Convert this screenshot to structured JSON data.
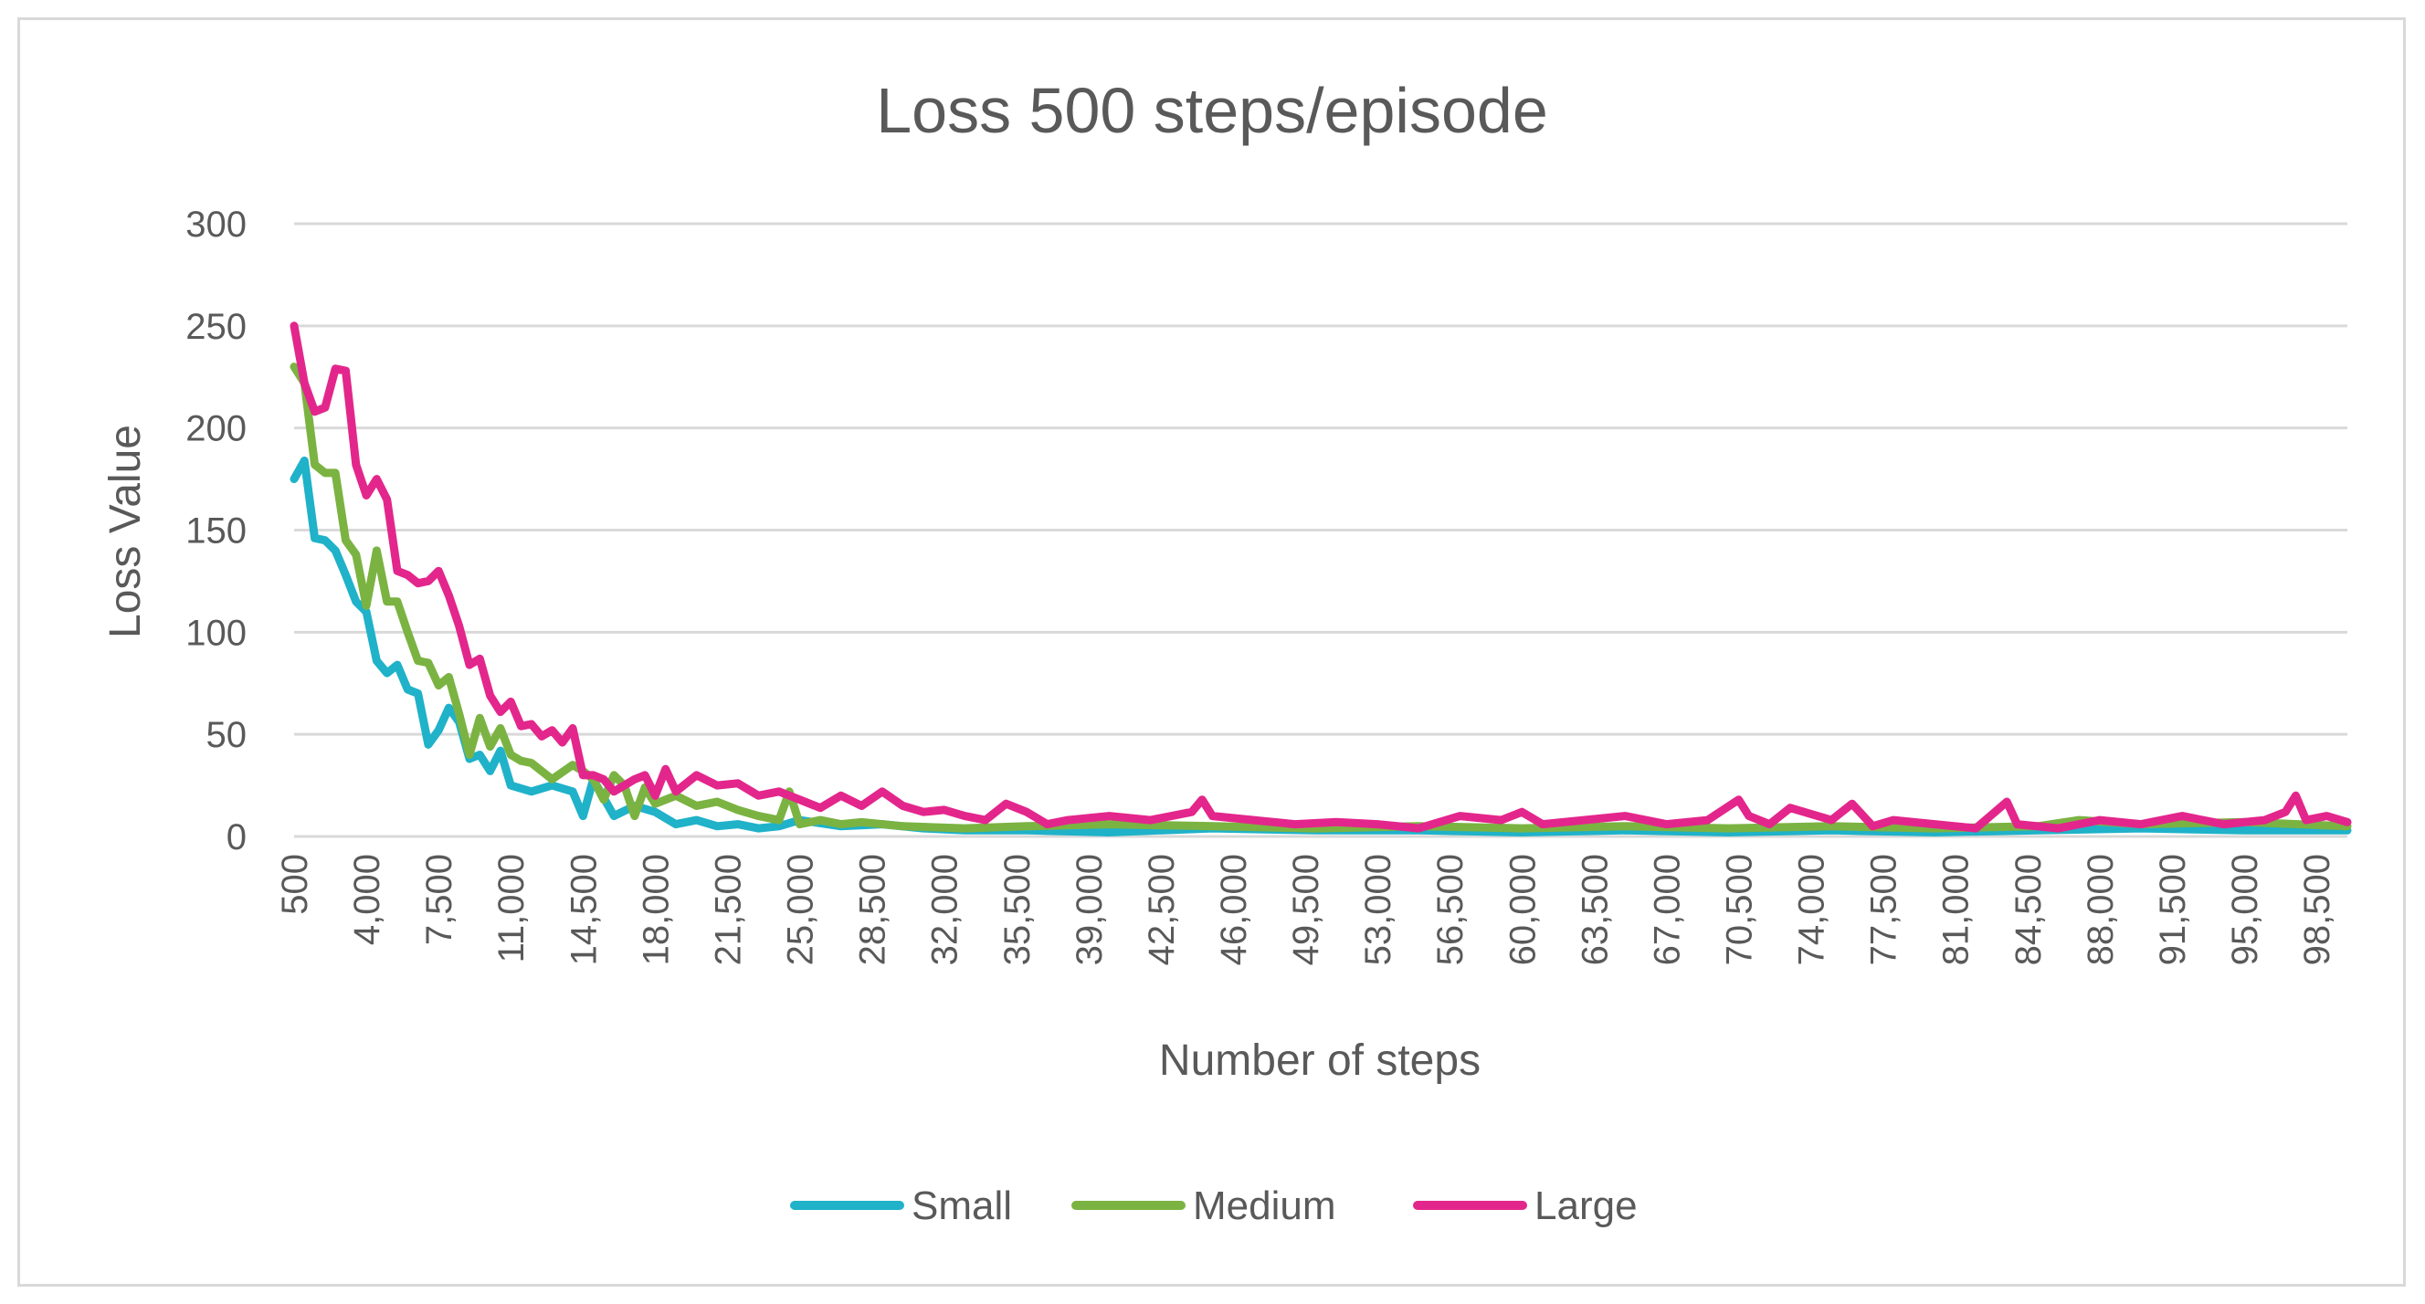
{
  "chart_data": {
    "type": "line",
    "title": "Loss 500 steps/episode",
    "xlabel": "Number of steps",
    "ylabel": "Loss Value",
    "ylim": [
      0,
      300
    ],
    "yticks": [
      0,
      50,
      100,
      150,
      200,
      250,
      300
    ],
    "xlim": [
      500,
      100000
    ],
    "xtick_labels": [
      "500",
      "4,000",
      "7,500",
      "11,000",
      "14,500",
      "18,000",
      "21,500",
      "25,000",
      "28,500",
      "32,000",
      "35,500",
      "39,000",
      "42,500",
      "46,000",
      "49,500",
      "53,000",
      "56,500",
      "60,000",
      "63,500",
      "67,000",
      "70,500",
      "74,000",
      "77,500",
      "81,000",
      "84,500",
      "88,000",
      "91,500",
      "95,000",
      "98,500"
    ],
    "grid": true,
    "legend_position": "bottom",
    "series": [
      {
        "name": "Small",
        "color": "#1fb2c9",
        "x": [
          500,
          1000,
          1500,
          2000,
          2500,
          3000,
          3500,
          4000,
          4500,
          5000,
          5500,
          6000,
          6500,
          7000,
          7500,
          8000,
          8500,
          9000,
          9500,
          10000,
          10500,
          11000,
          12000,
          13000,
          14000,
          14500,
          15000,
          16000,
          17000,
          18000,
          19000,
          20000,
          21000,
          22000,
          23000,
          24000,
          25000,
          27000,
          29000,
          31000,
          33000,
          36000,
          40000,
          45000,
          50000,
          55000,
          60000,
          65000,
          70000,
          75000,
          80000,
          85000,
          90000,
          95000,
          100000
        ],
        "y": [
          175,
          184,
          146,
          145,
          140,
          128,
          115,
          110,
          86,
          80,
          84,
          72,
          70,
          45,
          52,
          63,
          56,
          38,
          40,
          32,
          42,
          25,
          22,
          25,
          22,
          10,
          28,
          10,
          15,
          12,
          6,
          8,
          5,
          6,
          4,
          5,
          8,
          5,
          6,
          4,
          3,
          3,
          2,
          4,
          3,
          3,
          2,
          3,
          2,
          3,
          2,
          3,
          4,
          3,
          3
        ]
      },
      {
        "name": "Medium",
        "color": "#7bb342",
        "x": [
          500,
          1000,
          1500,
          2000,
          2500,
          3000,
          3500,
          4000,
          4500,
          5000,
          5500,
          6000,
          6500,
          7000,
          7500,
          8000,
          8500,
          9000,
          9500,
          10000,
          10500,
          11000,
          11500,
          12000,
          13000,
          14000,
          14500,
          15000,
          15500,
          16000,
          16500,
          17000,
          17500,
          18000,
          19000,
          20000,
          21000,
          22000,
          23000,
          24000,
          24500,
          25000,
          26000,
          27000,
          28000,
          30000,
          33000,
          36000,
          40000,
          45000,
          50000,
          55000,
          60000,
          65000,
          70000,
          75000,
          80000,
          85000,
          87000,
          90000,
          95000,
          100000
        ],
        "y": [
          230,
          222,
          182,
          178,
          178,
          145,
          138,
          113,
          140,
          115,
          115,
          100,
          86,
          85,
          74,
          78,
          60,
          40,
          58,
          44,
          53,
          40,
          37,
          36,
          28,
          35,
          32,
          28,
          18,
          30,
          25,
          10,
          24,
          16,
          20,
          15,
          17,
          13,
          10,
          8,
          22,
          6,
          8,
          6,
          7,
          5,
          4,
          5,
          6,
          5,
          4,
          5,
          4,
          5,
          4,
          5,
          4,
          5,
          8,
          6,
          7,
          5
        ]
      },
      {
        "name": "Large",
        "color": "#e3268c",
        "x": [
          500,
          1000,
          1500,
          2000,
          2500,
          3000,
          3500,
          4000,
          4500,
          5000,
          5500,
          6000,
          6500,
          7000,
          7500,
          8000,
          8500,
          9000,
          9500,
          10000,
          10500,
          11000,
          11500,
          12000,
          12500,
          13000,
          13500,
          14000,
          14500,
          15000,
          15500,
          16000,
          16500,
          17000,
          17500,
          18000,
          18500,
          19000,
          20000,
          21000,
          22000,
          23000,
          24000,
          25000,
          26000,
          27000,
          28000,
          29000,
          30000,
          31000,
          32000,
          33000,
          34000,
          35000,
          36000,
          37000,
          38000,
          40000,
          42000,
          44000,
          44500,
          45000,
          47000,
          49000,
          51000,
          53000,
          55000,
          57000,
          59000,
          60000,
          61000,
          63000,
          65000,
          67000,
          69000,
          70500,
          71000,
          72000,
          73000,
          75000,
          76000,
          77000,
          78000,
          80000,
          82000,
          83500,
          84000,
          86000,
          88000,
          90000,
          92000,
          94000,
          96000,
          97000,
          97500,
          98000,
          99000,
          100000
        ],
        "y": [
          250,
          222,
          208,
          210,
          229,
          228,
          182,
          167,
          175,
          165,
          130,
          128,
          124,
          125,
          130,
          118,
          103,
          84,
          87,
          69,
          61,
          66,
          54,
          55,
          49,
          52,
          46,
          53,
          30,
          30,
          28,
          22,
          25,
          28,
          30,
          20,
          33,
          22,
          30,
          25,
          26,
          20,
          22,
          18,
          14,
          20,
          15,
          22,
          15,
          12,
          13,
          10,
          8,
          16,
          12,
          6,
          8,
          10,
          8,
          12,
          18,
          10,
          8,
          6,
          7,
          6,
          4,
          10,
          8,
          12,
          6,
          8,
          10,
          6,
          8,
          18,
          10,
          6,
          14,
          8,
          16,
          5,
          8,
          6,
          4,
          17,
          6,
          4,
          8,
          6,
          10,
          6,
          8,
          12,
          20,
          8,
          10,
          7
        ]
      }
    ]
  }
}
